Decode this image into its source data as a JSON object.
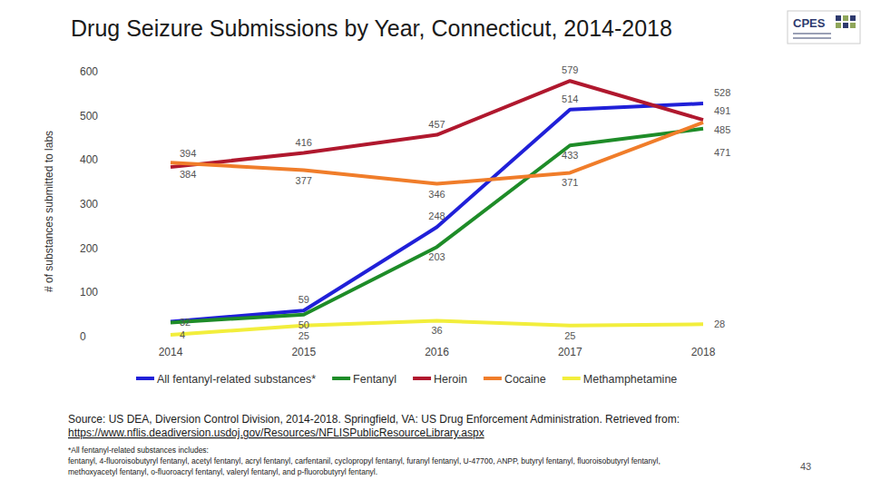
{
  "chart_data": {
    "type": "line",
    "title": "Drug Seizure Submissions by Year, Connecticut, 2014-2018",
    "y_label": "# of substances submitted to labs",
    "categories": [
      "2014",
      "2015",
      "2016",
      "2017",
      "2018"
    ],
    "series": [
      {
        "name": "All fentanyl-related substances*",
        "color": "#2020d8",
        "values": [
          34,
          59,
          248,
          514,
          528
        ],
        "value_labels": [
          null,
          "59",
          "248",
          "514",
          "528"
        ]
      },
      {
        "name": "Fentanyl",
        "color": "#1e8c28",
        "values": [
          32,
          50,
          203,
          433,
          471
        ]
      },
      {
        "name": "Heroin",
        "color": "#b0182e",
        "values": [
          384,
          416,
          457,
          579,
          491
        ]
      },
      {
        "name": "Cocaine",
        "color": "#f07d2a",
        "values": [
          394,
          377,
          346,
          371,
          485
        ]
      },
      {
        "name": "Methamphetamine",
        "color": "#f2ee3c",
        "values": [
          4,
          25,
          36,
          25,
          28
        ]
      }
    ],
    "ylim": [
      0,
      600
    ],
    "yticks": [
      0,
      100,
      200,
      300,
      400,
      500,
      600
    ],
    "grid": false,
    "legend": "bottom",
    "data_labels": true
  },
  "source": "Source: US DEA, Diversion Control Division, 2014-2018. Springfield, VA: US Drug Enforcement Administration. Retrieved from:",
  "source_url": "https://www.nflis.deadiversion.usdoj.gov/Resources/NFLISPublicResourceLibrary.aspx",
  "footnote": [
    "*All fentanyl-related substances includes:",
    "fentanyl, 4-fluoroisobutyryl fentanyl, acetyl fentanyl, acryl fentanyl, carfentanil, cyclopropyl fentanyl, furanyl fentanyl, U-47700, ANPP, butyryl fentanyl, fluoroisobutyryl fentanyl,",
    "methoxyacetyl fentanyl, o-fluoroacryl fentanyl, valeryl fentanyl, and p-fluorobutyryl fentanyl."
  ],
  "logo": "CPES",
  "page_number": 43
}
